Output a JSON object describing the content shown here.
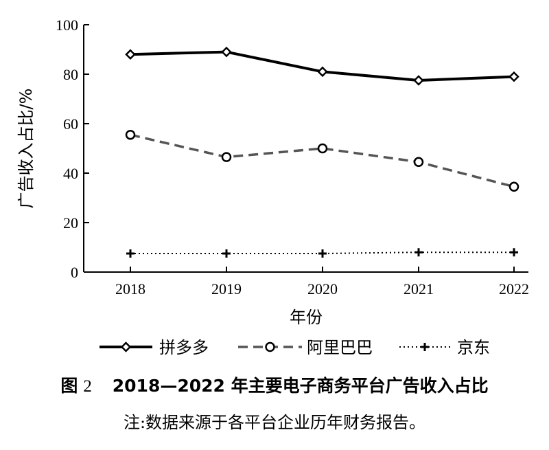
{
  "chart_data": {
    "type": "line",
    "x": [
      "2018",
      "2019",
      "2020",
      "2021",
      "2022"
    ],
    "xlabel": "年份",
    "ylabel": "广告收入占比/%",
    "ylim": [
      0,
      100
    ],
    "yticks": [
      "0",
      "20",
      "40",
      "60",
      "80",
      "100"
    ],
    "grid": false,
    "legend_position": "bottom",
    "series": [
      {
        "name": "拼多多",
        "values": [
          88,
          89,
          81,
          77.5,
          79
        ],
        "color": "#000000",
        "marker": "diamond",
        "line_style": "solid"
      },
      {
        "name": "阿里巴巴",
        "values": [
          55.5,
          46.5,
          50,
          44.5,
          34.5
        ],
        "color": "#555555",
        "marker": "circle",
        "line_style": "dashed"
      },
      {
        "name": "京东",
        "values": [
          7.5,
          7.5,
          7.5,
          8,
          8
        ],
        "color": "#000000",
        "marker": "plus",
        "line_style": "dotted"
      }
    ]
  },
  "caption": {
    "figure_label": "图",
    "figure_number": "2",
    "title": "2018—2022 年主要电子商务平台广告收入占比",
    "note": "注:数据来源于各平台企业历年财务报告。"
  }
}
